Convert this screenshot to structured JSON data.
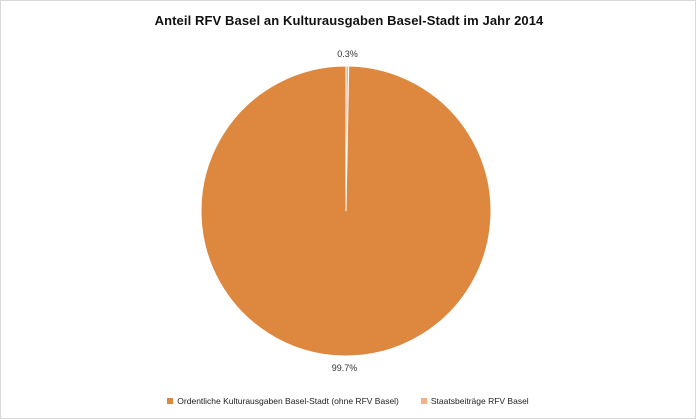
{
  "chart_data": {
    "type": "pie",
    "title": "Anteil RFV Basel an Kulturausgaben Basel-Stadt im Jahr 2014",
    "series": [
      {
        "name": "Ordentliche Kulturausgaben Basel-Stadt (ohne RFV Basel)",
        "value": 99.7,
        "label": "99.7%",
        "color": "#DD873F"
      },
      {
        "name": "Staatsbeiträge RFV Basel",
        "value": 0.3,
        "label": "0.3%",
        "color": "#F4B183"
      }
    ],
    "legend_position": "bottom"
  }
}
